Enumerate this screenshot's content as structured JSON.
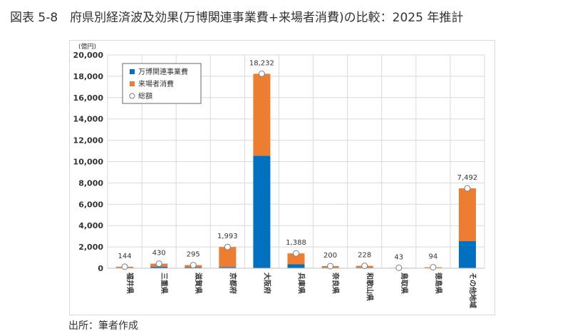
{
  "figure": {
    "title": "図表 5-8　府県別経済波及効果(万博関連事業費+来場者消費)の比較：2025 年推計",
    "source": "出所：筆者作成"
  },
  "chart_data": {
    "type": "bar",
    "stacked": true,
    "unit_label": "(億円)",
    "categories": [
      "福井県",
      "三重県",
      "滋賀県",
      "京都府",
      "大阪府",
      "兵庫県",
      "奈良県",
      "和歌山県",
      "鳥取県",
      "徳島県",
      "その他地域"
    ],
    "series": [
      {
        "name": "万博関連事業費",
        "color": "#0070c0",
        "values": [
          30,
          140,
          95,
          120,
          10550,
          370,
          60,
          60,
          10,
          20,
          2540
        ]
      },
      {
        "name": "来場者消費",
        "color": "#ed7d31",
        "values": [
          114,
          290,
          200,
          1873,
          7682,
          1018,
          140,
          168,
          33,
          74,
          4952
        ]
      }
    ],
    "totals": {
      "name": "総額",
      "values": [
        144,
        430,
        295,
        1993,
        18232,
        1388,
        200,
        228,
        43,
        94,
        7492
      ],
      "labels": [
        "144",
        "430",
        "295",
        "1,993",
        "18,232",
        "1,388",
        "200",
        "228",
        "43",
        "94",
        "7,492"
      ]
    },
    "ylim": [
      0,
      20000
    ],
    "yticks": [
      0,
      2000,
      4000,
      6000,
      8000,
      10000,
      12000,
      14000,
      16000,
      18000,
      20000
    ],
    "ytick_labels": [
      "0",
      "2,000",
      "4,000",
      "6,000",
      "8,000",
      "10,000",
      "12,000",
      "14,000",
      "16,000",
      "18,000",
      "20,000"
    ],
    "grid": true,
    "legend_position": "top-left"
  }
}
